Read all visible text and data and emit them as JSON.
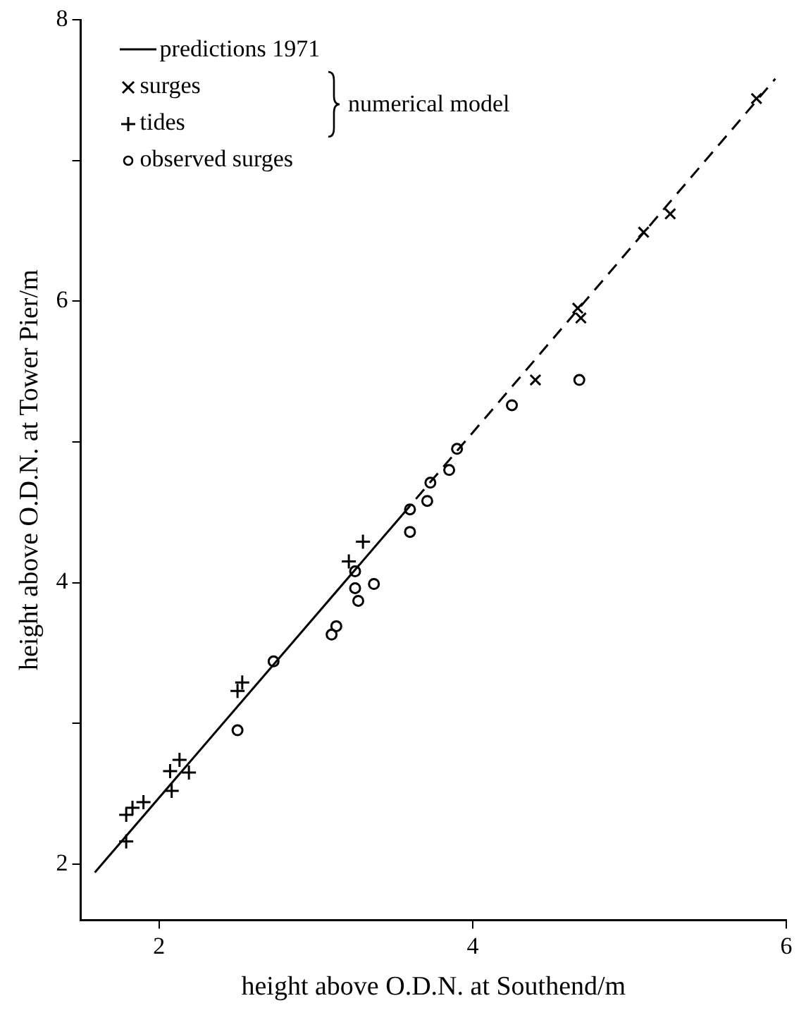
{
  "chart_data": {
    "type": "scatter",
    "xlabel": "height above O.D.N. at Southend/m",
    "ylabel": "height above O.D.N. at Tower Pier/m",
    "xlim": [
      1.5,
      6
    ],
    "xticks": [
      2,
      4,
      6
    ],
    "ylim": [
      1.6,
      8
    ],
    "yticks": [
      2,
      {
        "value": 3,
        "label": null
      },
      4,
      {
        "value": 5,
        "label": null
      },
      6,
      {
        "value": 7,
        "label": null
      },
      8
    ],
    "grid": false,
    "legend": "top left",
    "annotations": [
      "numerical model"
    ],
    "series": [
      {
        "name": "predictions 1971",
        "type": "line",
        "color": "#000000",
        "line_style": "solid",
        "marker": "none",
        "x": [
          1.59,
          3.55
        ],
        "values": [
          1.94,
          4.48
        ]
      },
      {
        "name": "surges",
        "type": "scatter",
        "color": "#000000",
        "marker": "x",
        "x": [
          4.4,
          4.67,
          4.69,
          5.09,
          5.26,
          5.81
        ],
        "values": [
          5.44,
          5.95,
          5.88,
          6.49,
          6.62,
          7.44
        ]
      },
      {
        "name": "tides",
        "type": "scatter",
        "color": "#000000",
        "marker": "cross",
        "x": [
          1.79,
          1.79,
          1.83,
          1.9,
          2.08,
          2.07,
          2.13,
          2.19,
          2.5,
          2.53,
          3.21,
          3.3
        ],
        "values": [
          2.16,
          2.35,
          2.4,
          2.44,
          2.52,
          2.66,
          2.74,
          2.65,
          3.23,
          3.29,
          4.15,
          4.29
        ]
      },
      {
        "name": "observed surges",
        "type": "scatter",
        "color": "#000000",
        "marker": "circle",
        "x": [
          2.5,
          2.73,
          3.1,
          3.13,
          3.25,
          3.25,
          3.27,
          3.37,
          3.6,
          3.6,
          3.71,
          3.73,
          3.85,
          3.9,
          4.25,
          4.68
        ],
        "values": [
          2.95,
          3.44,
          3.63,
          3.69,
          4.08,
          3.96,
          3.87,
          3.99,
          4.52,
          4.36,
          4.58,
          4.71,
          4.8,
          4.95,
          5.26,
          5.44
        ]
      },
      {
        "type": "line",
        "color": "#000000",
        "line_style": "dashed",
        "marker": "none",
        "x": [
          3.55,
          5.93
        ],
        "values": [
          4.48,
          7.58
        ]
      }
    ]
  }
}
